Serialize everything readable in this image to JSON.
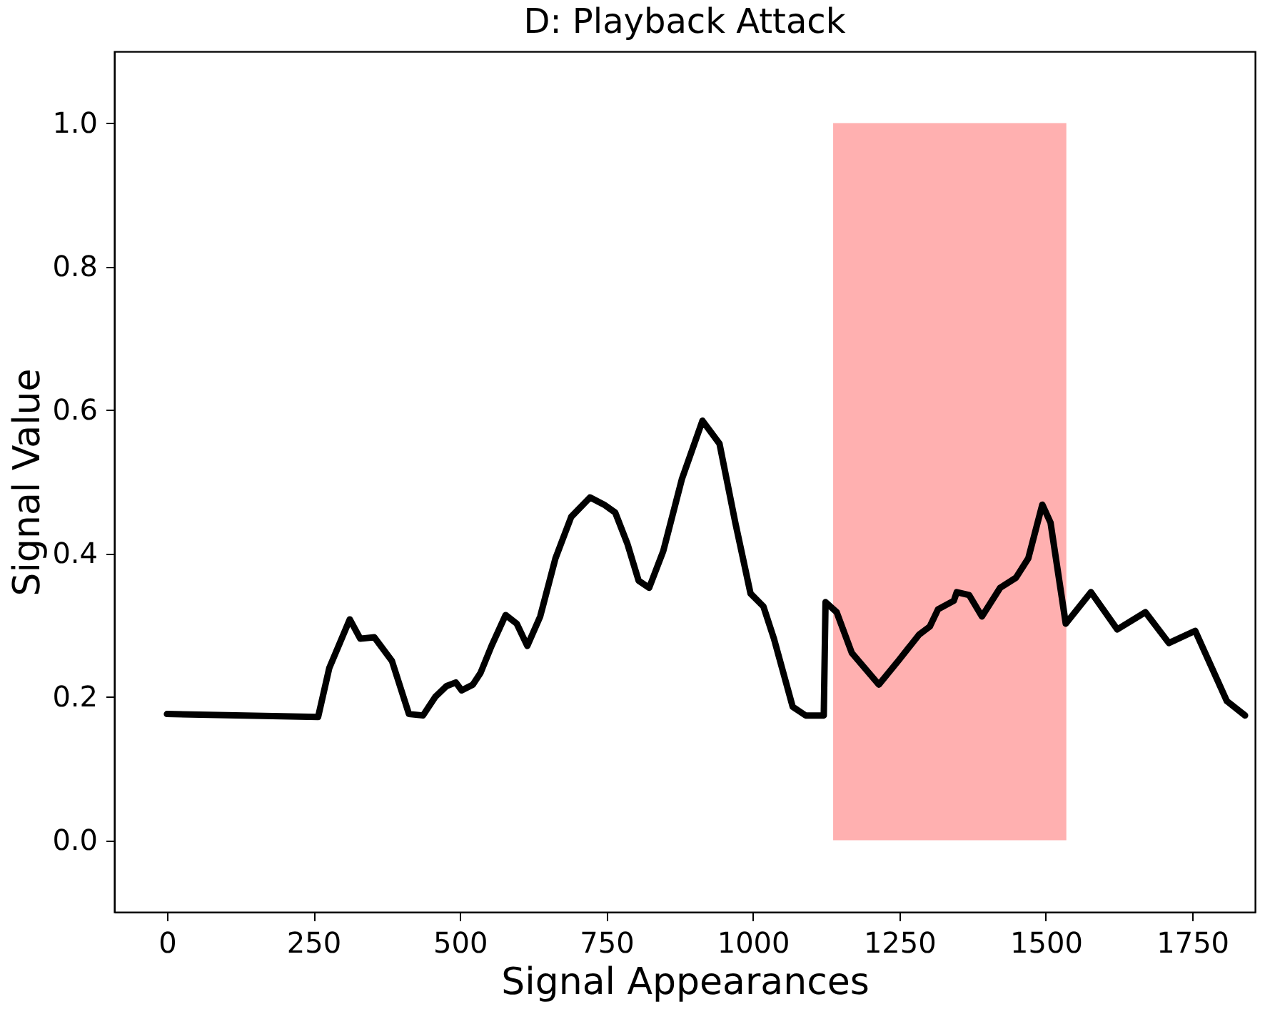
{
  "chart_data": {
    "type": "line",
    "title": "D: Playback Attack",
    "xlabel": "Signal Appearances",
    "ylabel": "Signal Value",
    "xlim": [
      -90,
      1857
    ],
    "ylim": [
      -0.1,
      1.1
    ],
    "xticks": [
      0,
      250,
      500,
      750,
      1000,
      1250,
      1500,
      1750
    ],
    "yticks": [
      {
        "value": 0,
        "label": "0.0"
      },
      {
        "value": 0.2,
        "label": "0.2"
      },
      {
        "value": 0.4,
        "label": "0.4"
      },
      {
        "value": 0.6,
        "label": "0.6"
      },
      {
        "value": 0.8,
        "label": "0.8"
      },
      {
        "value": 1,
        "label": "1.0"
      }
    ],
    "grid": false,
    "series": [
      {
        "type": "area",
        "color": "#ffb0b0",
        "x": [
          1137,
          1535
        ],
        "values": [
          1,
          1
        ]
      },
      {
        "color": "#000000",
        "x": [
          0,
          258,
          277,
          312,
          330,
          354,
          384,
          413,
          437,
          458,
          477,
          493,
          503,
          522,
          535,
          554,
          578,
          597,
          615,
          637,
          663,
          690,
          722,
          746,
          765,
          786,
          805,
          823,
          847,
          879,
          914,
          943,
          970,
          996,
          1018,
          1036,
          1068,
          1090,
          1121,
          1124,
          1143,
          1169,
          1215,
          1249,
          1284,
          1302,
          1316,
          1343,
          1348,
          1369,
          1391,
          1422,
          1449,
          1470,
          1494,
          1508,
          1534,
          1577,
          1622,
          1670,
          1710,
          1755,
          1809,
          1840
        ],
        "values": [
          0.176,
          0.172,
          0.24,
          0.308,
          0.281,
          0.283,
          0.25,
          0.176,
          0.174,
          0.2,
          0.215,
          0.22,
          0.209,
          0.217,
          0.233,
          0.271,
          0.314,
          0.302,
          0.271,
          0.312,
          0.393,
          0.451,
          0.478,
          0.468,
          0.457,
          0.413,
          0.362,
          0.352,
          0.403,
          0.504,
          0.585,
          0.553,
          0.443,
          0.344,
          0.326,
          0.281,
          0.186,
          0.174,
          0.174,
          0.332,
          0.318,
          0.261,
          0.217,
          0.251,
          0.287,
          0.298,
          0.322,
          0.334,
          0.346,
          0.342,
          0.312,
          0.352,
          0.366,
          0.393,
          0.468,
          0.443,
          0.302,
          0.346,
          0.294,
          0.318,
          0.275,
          0.292,
          0.194,
          0.174
        ]
      }
    ]
  }
}
